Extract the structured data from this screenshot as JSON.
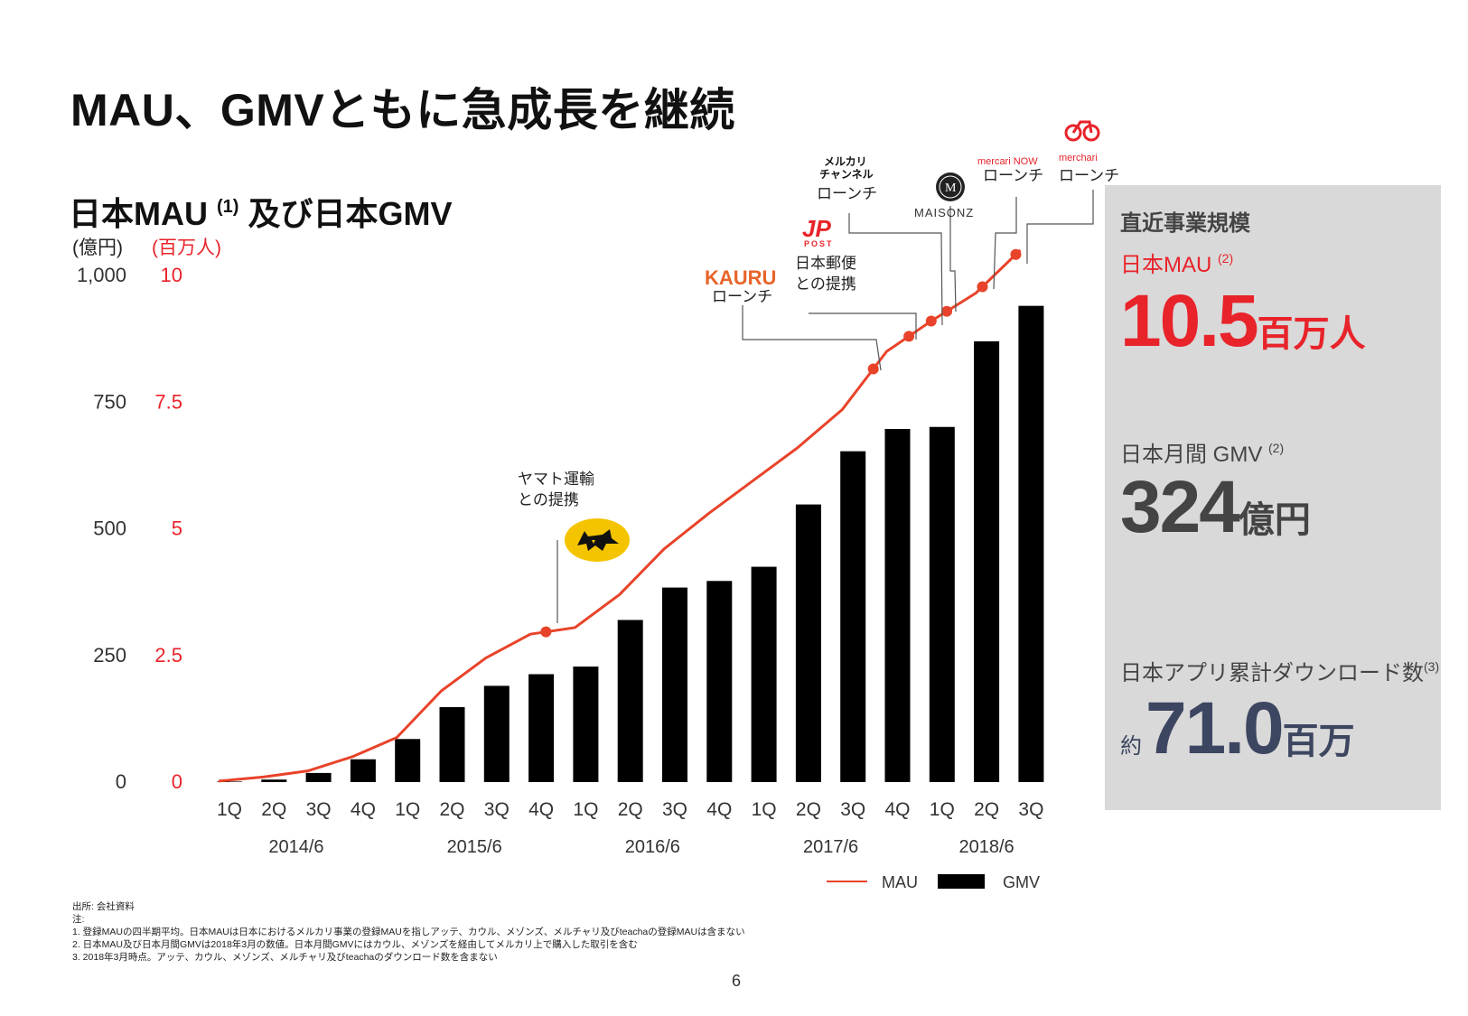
{
  "title": "MAU、GMVともに急成長を継続",
  "subtitle": {
    "text": "日本MAU",
    "sup": "(1)",
    "text2": "及び日本GMV"
  },
  "units": {
    "left": "(億円)",
    "right": "(百万人)"
  },
  "chart_data": {
    "type": "bar",
    "categories": [
      "1Q",
      "2Q",
      "3Q",
      "4Q",
      "1Q",
      "2Q",
      "3Q",
      "4Q",
      "1Q",
      "2Q",
      "3Q",
      "4Q",
      "1Q",
      "2Q",
      "3Q",
      "4Q",
      "1Q",
      "2Q",
      "3Q"
    ],
    "fiscal_years": [
      {
        "label": "2014/6",
        "start": 0,
        "end": 3
      },
      {
        "label": "2015/6",
        "start": 4,
        "end": 7
      },
      {
        "label": "2016/6",
        "start": 8,
        "end": 11
      },
      {
        "label": "2017/6",
        "start": 12,
        "end": 15
      },
      {
        "label": "2018/6",
        "start": 16,
        "end": 18
      }
    ],
    "series": [
      {
        "name": "GMV",
        "kind": "bar",
        "axis": "left",
        "color": "#000000",
        "values": [
          1,
          5,
          18,
          45,
          85,
          148,
          190,
          213,
          228,
          320,
          384,
          397,
          425,
          548,
          653,
          697,
          701,
          870,
          940
        ]
      },
      {
        "name": "MAU",
        "kind": "line",
        "axis": "right",
        "color": "#e8432a",
        "values": [
          0.02,
          0.1,
          0.22,
          0.5,
          0.88,
          1.8,
          2.45,
          2.92,
          3.05,
          3.7,
          4.6,
          5.3,
          5.95,
          6.6,
          7.35,
          8.5,
          9.1,
          9.65,
          10.5
        ]
      }
    ],
    "milestone_points": [
      {
        "index": 7.35
      },
      {
        "index": 14.7
      },
      {
        "index": 15.5
      },
      {
        "index": 16.0
      },
      {
        "index": 16.35
      },
      {
        "index": 17.15
      },
      {
        "index": 17.9
      }
    ],
    "y_left": {
      "ticks": [
        0,
        250,
        500,
        750,
        1000
      ],
      "labels": [
        "0",
        "250",
        "500",
        "750",
        "1,000"
      ],
      "ylim": [
        0,
        1000
      ]
    },
    "y_right": {
      "ticks": [
        0,
        2.5,
        5,
        7.5,
        10
      ],
      "labels": [
        "0",
        "2.5",
        "5",
        "7.5",
        "10"
      ],
      "ylim": [
        0,
        10
      ]
    },
    "legend": {
      "position": "bottom-right",
      "mau": "MAU",
      "gmv": "GMV"
    },
    "annotations": {
      "yamato": {
        "line1": "ヤマト運輸",
        "line2": "との提携"
      },
      "kauru": {
        "logo": "KAURU",
        "text": "ローンチ"
      },
      "jppost": {
        "logo": "JP",
        "logo_sub": "POST",
        "line1": "日本郵便",
        "line2": "との提携"
      },
      "channel": {
        "logo1": "メルカリ",
        "logo2": "チャンネル",
        "text": "ローンチ"
      },
      "maisonz": {
        "logo": "MAISONZ"
      },
      "mercarinow": {
        "logo": "mercari NOW",
        "text": "ローンチ"
      },
      "mercari_bike": {
        "logo": "merchari",
        "text": "ローンチ"
      }
    },
    "grid": false
  },
  "panel": {
    "heading": "直近事業規模",
    "mau_label": "日本MAU",
    "mau_sup": "(2)",
    "mau_value": "10.5",
    "mau_unit": "百万人",
    "gmv_label": "日本月間 GMV",
    "gmv_sup": "(2)",
    "gmv_value": "324",
    "gmv_unit": "億円",
    "dl_label": "日本アプリ累計ダウンロード数",
    "dl_sup": "(3)",
    "dl_prefix": "約",
    "dl_value": "71.0",
    "dl_unit": "百万"
  },
  "notes": {
    "source": "出所: 会社資料",
    "heading": "注:",
    "items": [
      "1.  登録MAUの四半期平均。日本MAUは日本におけるメルカリ事業の登録MAUを指しアッテ、カウル、メゾンズ、メルチャリ及びteachaの登録MAUは含まない",
      "2.  日本MAU及び日本月間GMVは2018年3月の数値。日本月間GMVにはカウル、メゾンズを経由してメルカリ上で購入した取引を含む",
      "3.  2018年3月時点。アッテ、カウル、メゾンズ、メルチャリ及びteachaのダウンロード数を含まない"
    ]
  },
  "page_number": "6",
  "colors": {
    "accent_red": "#e8232a",
    "line_red": "#e8432a",
    "bar": "#000000",
    "panel_bg": "#d9d9d9"
  }
}
